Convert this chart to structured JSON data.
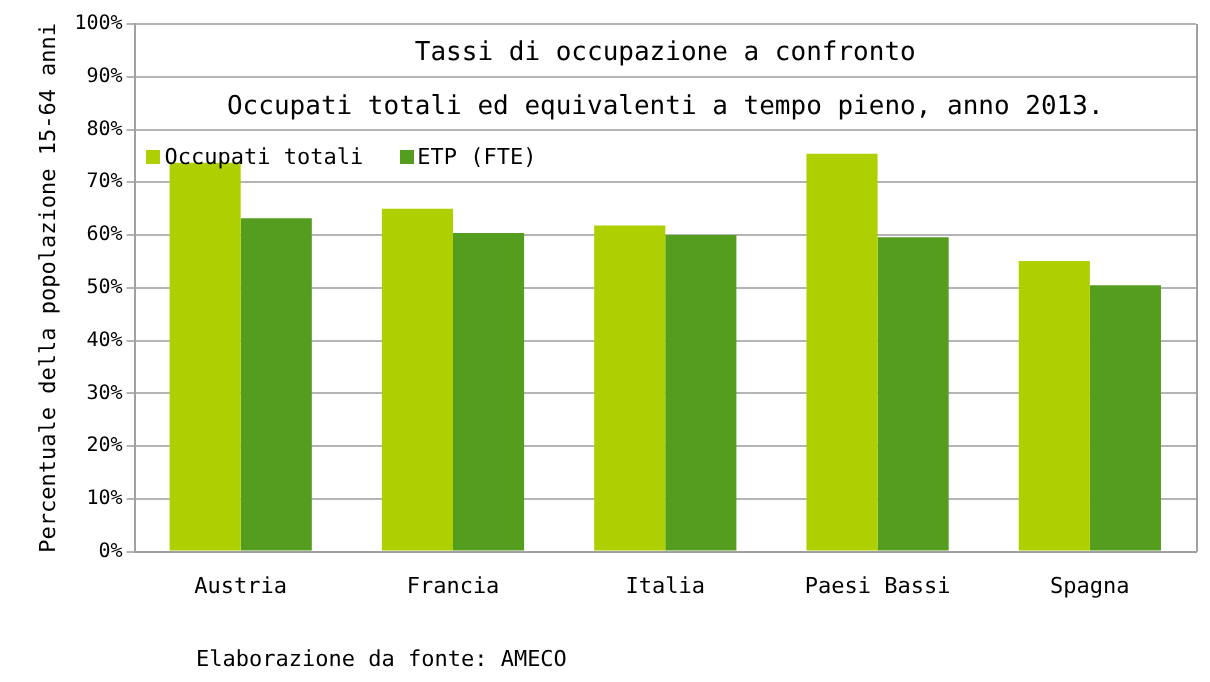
{
  "chart_data": {
    "type": "bar",
    "title": "Tassi di occupazione a confronto",
    "subtitle": "Occupati totali ed equivalenti a tempo pieno, anno 2013.",
    "ylabel": "Percentuale della popolazione 15-64 anni",
    "categories": [
      "Austria",
      "Francia",
      "Italia",
      "Paesi Bassi",
      "Spagna"
    ],
    "series": [
      {
        "name": "Occupati totali",
        "color": "#aed000",
        "values": [
          73.7,
          65,
          61.8,
          75.4,
          55.1
        ]
      },
      {
        "name": "ETP (FTE)",
        "color": "#559d1f",
        "values": [
          63.2,
          60.4,
          60,
          59.6,
          50.5
        ]
      }
    ],
    "ylim": [
      0,
      100
    ],
    "yticks": [
      {
        "value": 0,
        "label": "0%"
      },
      {
        "value": 10,
        "label": "10%"
      },
      {
        "value": 20,
        "label": "20%"
      },
      {
        "value": 30,
        "label": "30%"
      },
      {
        "value": 40,
        "label": "40%"
      },
      {
        "value": 50,
        "label": "50%"
      },
      {
        "value": 60,
        "label": "60%"
      },
      {
        "value": 70,
        "label": "70%"
      },
      {
        "value": 80,
        "label": "80%"
      },
      {
        "value": 90,
        "label": "90%"
      },
      {
        "value": 100,
        "label": "100%"
      }
    ],
    "grid": "y",
    "legend": "top left",
    "annotations": [
      "Elaborazione da fonte: AMECO"
    ]
  }
}
